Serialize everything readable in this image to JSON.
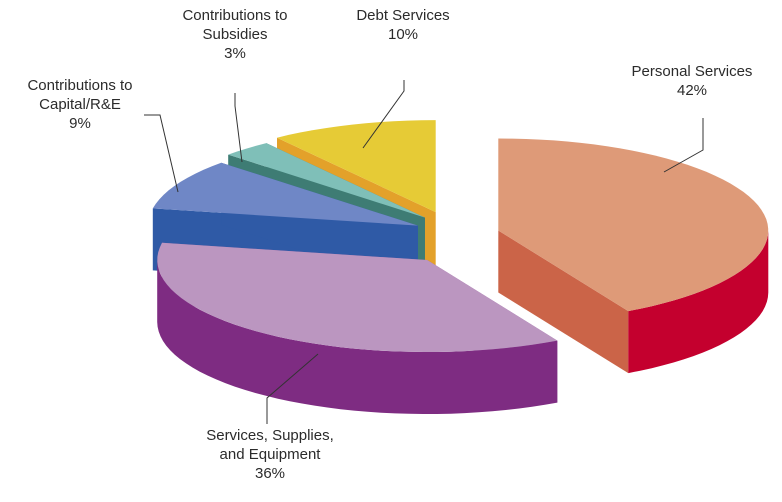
{
  "chart_data": {
    "type": "pie",
    "style": "3d-exploded",
    "series": [
      {
        "values": [
          42,
          36,
          9,
          3,
          10
        ],
        "labels": [
          "Personal Services",
          "Services, Supplies, and Equipment",
          "Contributions to Capital/R&E",
          "Contributions to Subsidies",
          "Debt Services"
        ],
        "display_values": [
          "42%",
          "36%",
          "9%",
          "3%",
          "10%"
        ]
      }
    ],
    "label_text": [
      [
        "Personal Services",
        "42%"
      ],
      [
        "Services, Supplies,",
        "and Equipment",
        "36%"
      ],
      [
        "Contributions to",
        "Capital/R&E",
        "9%"
      ],
      [
        "Contributions to",
        "Subsidies",
        "3%"
      ],
      [
        "Debt Services",
        "10%"
      ]
    ],
    "colors": {
      "top": [
        "#DE9A78",
        "#BB96C0",
        "#6F87C6",
        "#7FBFB8",
        "#E6CB36"
      ],
      "side": [
        "#C4002E",
        "#7E2C82",
        "#3A67B4",
        "#4E8A80",
        "#E1A22A"
      ],
      "face": [
        "#CB6448",
        "#94509A",
        "#2F5AA6",
        "#3E7C74",
        "#E3A12A"
      ]
    },
    "unit": "%",
    "legend": "none",
    "title": ""
  }
}
